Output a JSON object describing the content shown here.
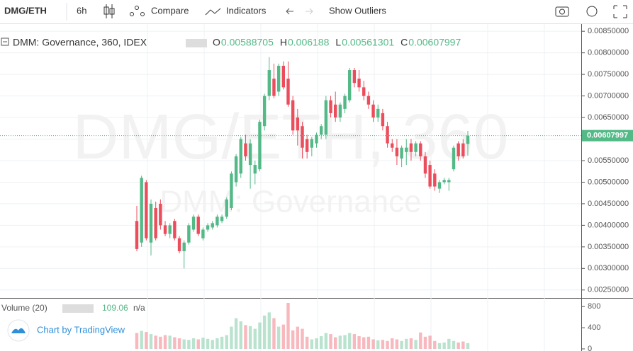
{
  "toolbar": {
    "symbol": "DMG/ETH",
    "interval": "6h",
    "compare": "Compare",
    "indicators": "Indicators",
    "outliers": "Show Outliers"
  },
  "footer": "Chart by TradingView",
  "chart_data": {
    "type": "candlestick",
    "legend_title": "DMM: Governance, 360, IDEX",
    "ohlc_labels": [
      "O",
      "H",
      "L",
      "C"
    ],
    "watermark": {
      "symbol": "DMG/ETH, 360",
      "name": "DMM: Governance"
    },
    "up_color": "#53b987",
    "down_color": "#eb4d5c",
    "open": [
      0.0041,
      0.0036,
      0.005,
      0.0036,
      0.0044,
      0.0045,
      0.004,
      0.0038,
      0.0041,
      0.0037,
      0.0034,
      0.0036,
      0.0039,
      0.0042,
      0.0037,
      0.0039,
      0.00395,
      0.004,
      0.0041,
      0.0042,
      0.0044,
      0.005,
      0.0052,
      0.0059,
      0.0054,
      0.0052,
      0.0053,
      0.0063,
      0.007,
      0.0074,
      0.0071,
      0.0077,
      0.0074,
      0.0069,
      0.0065,
      0.0063,
      0.006,
      0.0058,
      0.0059,
      0.0061,
      0.0061,
      0.0069,
      0.0068,
      0.0065,
      0.0067,
      0.0069,
      0.0076,
      0.0074,
      0.0072,
      0.007,
      0.0068,
      0.0065,
      0.0066,
      0.0063,
      0.0059,
      0.0058,
      0.00555,
      0.0057,
      0.0059,
      0.0057,
      0.0059,
      0.0056,
      0.0054,
      0.0052,
      0.00485,
      0.005,
      0.005,
      0.0053,
      0.0059,
      0.0059,
      0.00588705
    ],
    "high": [
      0.00445,
      0.00515,
      0.00505,
      0.0046,
      0.00455,
      0.0046,
      0.0041,
      0.00405,
      0.00415,
      0.00375,
      0.00365,
      0.00405,
      0.00425,
      0.00425,
      0.00395,
      0.00405,
      0.0041,
      0.00425,
      0.00425,
      0.00465,
      0.00525,
      0.00565,
      0.00605,
      0.0061,
      0.006,
      0.0055,
      0.00645,
      0.00705,
      0.0079,
      0.00775,
      0.00775,
      0.0078,
      0.0078,
      0.007,
      0.0067,
      0.0064,
      0.0061,
      0.00605,
      0.00615,
      0.00635,
      0.007,
      0.007,
      0.0071,
      0.00685,
      0.00705,
      0.00765,
      0.00765,
      0.0076,
      0.00735,
      0.0071,
      0.0069,
      0.0068,
      0.0067,
      0.0064,
      0.006,
      0.006,
      0.00585,
      0.006,
      0.006,
      0.00595,
      0.00595,
      0.0057,
      0.0055,
      0.0053,
      0.00505,
      0.0051,
      0.0051,
      0.00585,
      0.00595,
      0.006,
      0.006188
    ],
    "low": [
      0.0034,
      0.0035,
      0.00365,
      0.0033,
      0.00365,
      0.0039,
      0.00375,
      0.0037,
      0.00365,
      0.00335,
      0.003,
      0.00355,
      0.00385,
      0.00375,
      0.00365,
      0.00385,
      0.0039,
      0.00395,
      0.00405,
      0.00415,
      0.00435,
      0.0049,
      0.0051,
      0.0055,
      0.00485,
      0.00495,
      0.00525,
      0.0062,
      0.0069,
      0.00695,
      0.007,
      0.00715,
      0.00675,
      0.0061,
      0.00585,
      0.00555,
      0.00555,
      0.0056,
      0.0058,
      0.006,
      0.006,
      0.0065,
      0.0064,
      0.0064,
      0.0066,
      0.00685,
      0.0072,
      0.0071,
      0.0069,
      0.0067,
      0.0064,
      0.0064,
      0.0062,
      0.0058,
      0.0057,
      0.0054,
      0.00535,
      0.0054,
      0.0055,
      0.0056,
      0.0055,
      0.0051,
      0.00485,
      0.0048,
      0.00475,
      0.00495,
      0.0048,
      0.00525,
      0.0055,
      0.00555,
      0.00561301
    ],
    "close": [
      0.00345,
      0.0051,
      0.0037,
      0.0045,
      0.0037,
      0.004,
      0.0038,
      0.004,
      0.0037,
      0.0034,
      0.0036,
      0.004,
      0.0042,
      0.0038,
      0.0039,
      0.004,
      0.00405,
      0.0042,
      0.0042,
      0.0046,
      0.0052,
      0.0056,
      0.006,
      0.0056,
      0.0059,
      0.0054,
      0.0064,
      0.007,
      0.0076,
      0.007,
      0.0077,
      0.0072,
      0.0068,
      0.0062,
      0.0062,
      0.0058,
      0.0057,
      0.006,
      0.0061,
      0.0063,
      0.0069,
      0.0066,
      0.0065,
      0.0068,
      0.007,
      0.0076,
      0.0073,
      0.0072,
      0.007,
      0.0068,
      0.0065,
      0.0067,
      0.0063,
      0.0059,
      0.0058,
      0.0056,
      0.0058,
      0.0058,
      0.0057,
      0.0059,
      0.0056,
      0.0052,
      0.0049,
      0.0049,
      0.005,
      0.00505,
      0.00505,
      0.0058,
      0.0056,
      0.0056,
      0.00607997
    ],
    "volume": [
      300,
      340,
      320,
      280,
      250,
      230,
      260,
      250,
      220,
      200,
      180,
      170,
      200,
      180,
      210,
      190,
      170,
      200,
      230,
      260,
      420,
      580,
      520,
      450,
      430,
      380,
      500,
      630,
      690,
      580,
      420,
      460,
      870,
      350,
      420,
      380,
      230,
      180,
      200,
      240,
      300,
      280,
      220,
      250,
      260,
      300,
      280,
      240,
      220,
      230,
      180,
      160,
      170,
      150,
      200,
      180,
      150,
      190,
      200,
      170,
      310,
      230,
      250,
      150,
      110,
      120,
      190,
      150,
      120,
      140,
      109.06
    ],
    "ylim": [
      0.002316,
      0.008667
    ],
    "yticks": [
      {
        "value": 0.0025,
        "label": "0.00250000"
      },
      {
        "value": 0.003,
        "label": "0.00300000"
      },
      {
        "value": 0.0035,
        "label": "0.00350000"
      },
      {
        "value": 0.004,
        "label": "0.00400000"
      },
      {
        "value": 0.0045,
        "label": "0.00450000"
      },
      {
        "value": 0.005,
        "label": "0.00500000"
      },
      {
        "value": 0.0055,
        "label": "0.00550000"
      },
      {
        "value": 0.006,
        "label": "0.00600000"
      },
      {
        "value": 0.0065,
        "label": "0.00650000"
      },
      {
        "value": 0.007,
        "label": "0.00700000"
      },
      {
        "value": 0.0075,
        "label": "0.00750000"
      },
      {
        "value": 0.008,
        "label": "0.00800000"
      },
      {
        "value": 0.0085,
        "label": "0.00850000"
      }
    ],
    "volume_title": "Volume (20)",
    "volume_extra": "n/a",
    "volume_ylim": [
      0,
      950
    ],
    "volume_yticks": [
      0,
      400,
      800
    ],
    "grid": true
  }
}
